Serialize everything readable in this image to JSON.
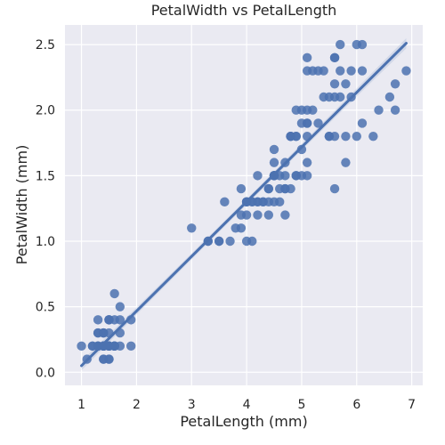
{
  "chart_data": {
    "type": "scatter",
    "title": "PetalWidth vs PetalLength",
    "xlabel": "PetalLength (mm)",
    "ylabel": "PetalWidth (mm)",
    "xlim": [
      0.7,
      7.2
    ],
    "ylim": [
      -0.1,
      2.65
    ],
    "xticks": [
      1,
      2,
      3,
      4,
      5,
      6,
      7
    ],
    "yticks": [
      0.0,
      0.5,
      1.0,
      1.5,
      2.0,
      2.5
    ],
    "xtick_labels": [
      "1",
      "2",
      "3",
      "4",
      "5",
      "6",
      "7"
    ],
    "ytick_labels": [
      "0.0",
      "0.5",
      "1.0",
      "1.5",
      "2.0",
      "2.5"
    ],
    "grid": true,
    "background": "#EAEAF2",
    "point_color": "#4C72B0",
    "line_color": "#4C72B0",
    "regression": {
      "x_start": 1.0,
      "y_start": 0.05,
      "x_end": 6.9,
      "y_end": 2.51
    },
    "series": [
      {
        "points": [
          [
            1.4,
            0.2
          ],
          [
            1.4,
            0.2
          ],
          [
            1.3,
            0.2
          ],
          [
            1.5,
            0.2
          ],
          [
            1.4,
            0.2
          ],
          [
            1.7,
            0.4
          ],
          [
            1.4,
            0.3
          ],
          [
            1.5,
            0.2
          ],
          [
            1.4,
            0.2
          ],
          [
            1.5,
            0.1
          ],
          [
            1.5,
            0.2
          ],
          [
            1.6,
            0.2
          ],
          [
            1.4,
            0.1
          ],
          [
            1.1,
            0.1
          ],
          [
            1.2,
            0.2
          ],
          [
            1.5,
            0.4
          ],
          [
            1.3,
            0.4
          ],
          [
            1.4,
            0.3
          ],
          [
            1.7,
            0.3
          ],
          [
            1.5,
            0.3
          ],
          [
            1.7,
            0.2
          ],
          [
            1.5,
            0.4
          ],
          [
            1.0,
            0.2
          ],
          [
            1.7,
            0.5
          ],
          [
            1.9,
            0.2
          ],
          [
            1.6,
            0.2
          ],
          [
            1.6,
            0.4
          ],
          [
            1.5,
            0.2
          ],
          [
            1.4,
            0.2
          ],
          [
            1.6,
            0.2
          ],
          [
            1.6,
            0.2
          ],
          [
            1.5,
            0.4
          ],
          [
            1.5,
            0.1
          ],
          [
            1.4,
            0.2
          ],
          [
            1.5,
            0.2
          ],
          [
            1.2,
            0.2
          ],
          [
            1.3,
            0.2
          ],
          [
            1.4,
            0.1
          ],
          [
            1.3,
            0.2
          ],
          [
            1.5,
            0.2
          ],
          [
            1.3,
            0.3
          ],
          [
            1.3,
            0.3
          ],
          [
            1.3,
            0.2
          ],
          [
            1.6,
            0.6
          ],
          [
            1.9,
            0.4
          ],
          [
            1.4,
            0.3
          ],
          [
            1.6,
            0.2
          ],
          [
            1.4,
            0.2
          ],
          [
            1.5,
            0.2
          ],
          [
            1.4,
            0.2
          ],
          [
            4.7,
            1.4
          ],
          [
            4.5,
            1.5
          ],
          [
            4.9,
            1.5
          ],
          [
            4.0,
            1.3
          ],
          [
            4.6,
            1.5
          ],
          [
            4.5,
            1.3
          ],
          [
            4.7,
            1.6
          ],
          [
            3.3,
            1.0
          ],
          [
            4.6,
            1.3
          ],
          [
            3.9,
            1.4
          ],
          [
            3.5,
            1.0
          ],
          [
            4.2,
            1.5
          ],
          [
            4.0,
            1.0
          ],
          [
            4.7,
            1.4
          ],
          [
            3.6,
            1.3
          ],
          [
            4.4,
            1.4
          ],
          [
            4.5,
            1.5
          ],
          [
            4.1,
            1.0
          ],
          [
            4.5,
            1.5
          ],
          [
            3.9,
            1.1
          ],
          [
            4.8,
            1.8
          ],
          [
            4.0,
            1.3
          ],
          [
            4.9,
            1.5
          ],
          [
            4.7,
            1.2
          ],
          [
            4.3,
            1.3
          ],
          [
            4.4,
            1.4
          ],
          [
            4.8,
            1.4
          ],
          [
            5.0,
            1.7
          ],
          [
            4.5,
            1.5
          ],
          [
            3.5,
            1.0
          ],
          [
            3.8,
            1.1
          ],
          [
            3.7,
            1.0
          ],
          [
            3.9,
            1.2
          ],
          [
            5.1,
            1.6
          ],
          [
            4.5,
            1.5
          ],
          [
            4.5,
            1.6
          ],
          [
            4.7,
            1.5
          ],
          [
            4.4,
            1.3
          ],
          [
            4.1,
            1.3
          ],
          [
            4.0,
            1.3
          ],
          [
            4.4,
            1.2
          ],
          [
            4.6,
            1.4
          ],
          [
            4.0,
            1.2
          ],
          [
            3.3,
            1.0
          ],
          [
            4.2,
            1.3
          ],
          [
            4.2,
            1.2
          ],
          [
            4.2,
            1.3
          ],
          [
            4.3,
            1.3
          ],
          [
            3.0,
            1.1
          ],
          [
            4.1,
            1.3
          ],
          [
            6.0,
            2.5
          ],
          [
            5.1,
            1.9
          ],
          [
            5.9,
            2.1
          ],
          [
            5.6,
            1.8
          ],
          [
            5.8,
            2.2
          ],
          [
            6.6,
            2.1
          ],
          [
            4.5,
            1.7
          ],
          [
            6.3,
            1.8
          ],
          [
            5.8,
            1.8
          ],
          [
            6.1,
            2.5
          ],
          [
            5.1,
            2.0
          ],
          [
            5.3,
            1.9
          ],
          [
            5.5,
            2.1
          ],
          [
            5.0,
            2.0
          ],
          [
            5.1,
            2.4
          ],
          [
            5.3,
            2.3
          ],
          [
            5.5,
            1.8
          ],
          [
            6.7,
            2.2
          ],
          [
            6.9,
            2.3
          ],
          [
            5.0,
            1.5
          ],
          [
            5.7,
            2.3
          ],
          [
            4.9,
            2.0
          ],
          [
            6.7,
            2.0
          ],
          [
            4.9,
            1.8
          ],
          [
            5.7,
            2.1
          ],
          [
            6.0,
            1.8
          ],
          [
            4.8,
            1.8
          ],
          [
            4.9,
            1.8
          ],
          [
            5.6,
            2.1
          ],
          [
            5.8,
            1.6
          ],
          [
            6.1,
            1.9
          ],
          [
            6.4,
            2.0
          ],
          [
            5.6,
            2.2
          ],
          [
            5.1,
            1.5
          ],
          [
            5.6,
            1.4
          ],
          [
            6.1,
            2.3
          ],
          [
            5.6,
            2.4
          ],
          [
            5.5,
            1.8
          ],
          [
            4.8,
            1.8
          ],
          [
            5.4,
            2.1
          ],
          [
            5.6,
            2.4
          ],
          [
            5.1,
            2.3
          ],
          [
            5.1,
            1.9
          ],
          [
            5.9,
            2.3
          ],
          [
            5.7,
            2.5
          ],
          [
            5.2,
            2.3
          ],
          [
            5.0,
            1.9
          ],
          [
            5.2,
            2.0
          ],
          [
            5.4,
            2.3
          ],
          [
            5.1,
            1.8
          ]
        ]
      }
    ]
  }
}
